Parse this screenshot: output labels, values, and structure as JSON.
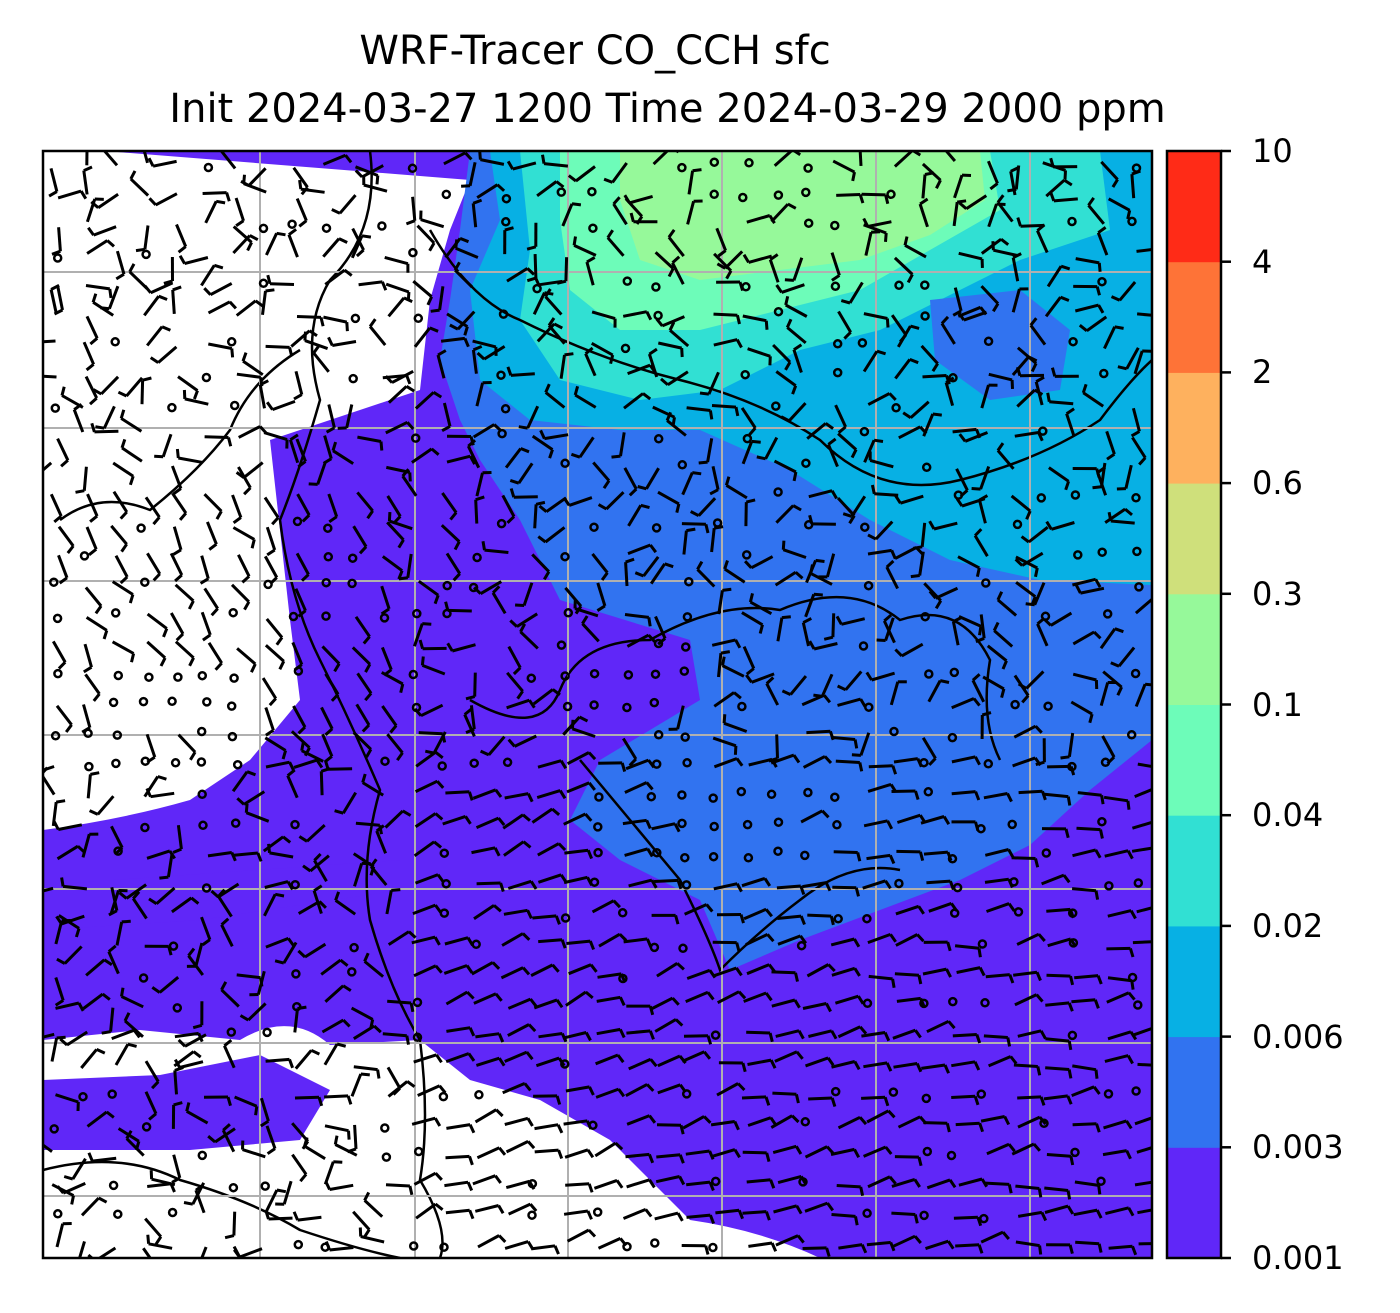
{
  "title": {
    "line1": "WRF-Tracer CO_CCH sfc",
    "line2": "Init 2024-03-27 1200 Time 2024-03-29 2000 ppm"
  },
  "colorbar": {
    "levels": [
      "0.001",
      "0.003",
      "0.006",
      "0.02",
      "0.04",
      "0.1",
      "0.3",
      "0.6",
      "2",
      "4",
      "10"
    ],
    "colors": [
      "#6027f8",
      "#3173f0",
      "#07b0e4",
      "#31e0d3",
      "#6dfcb9",
      "#96f99a",
      "#cfe07b",
      "#feb15e",
      "#fe7337",
      "#ff2b17"
    ]
  },
  "map": {
    "background": "#ffffff",
    "grid_color": "#b0b0b0",
    "barb_color": "#000000"
  }
}
